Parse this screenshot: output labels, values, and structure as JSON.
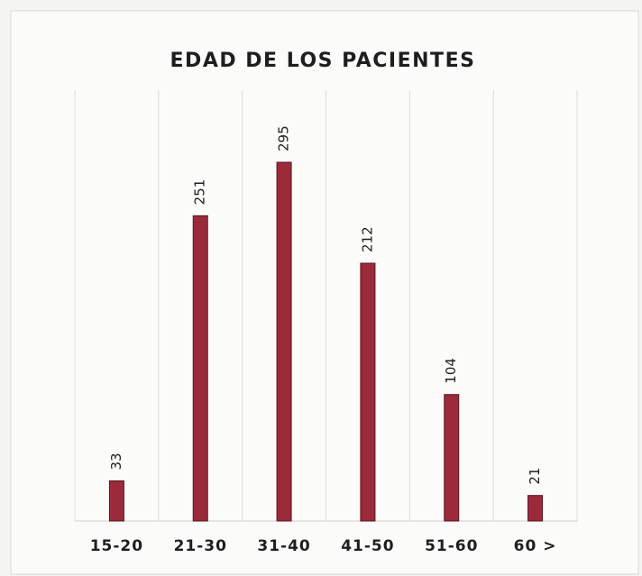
{
  "chart_data": {
    "type": "bar",
    "title": "EDAD DE LOS PACIENTES",
    "categories": [
      "15-20",
      "21-30",
      "31-40",
      "41-50",
      "51-60",
      "60 >"
    ],
    "values": [
      33,
      251,
      295,
      212,
      104,
      21
    ],
    "color": "#9b2a3a",
    "grid": true
  }
}
